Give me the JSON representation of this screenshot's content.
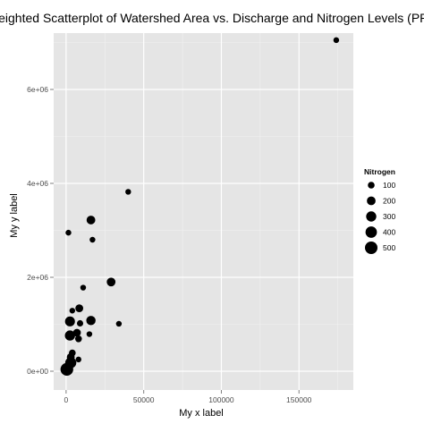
{
  "chart_data": {
    "type": "scatter",
    "title": "Weighted Scatterplot of Watershed Area vs. Discharge and Nitrogen Levels (PPM)",
    "xlabel": "My x label",
    "ylabel": "My y label",
    "xlim": [
      -8000,
      185000
    ],
    "ylim": [
      -400000,
      7200000
    ],
    "x_ticks": [
      0,
      50000,
      100000,
      150000
    ],
    "x_tick_labels": [
      "0",
      "50000",
      "100000",
      "150000"
    ],
    "y_ticks": [
      0,
      2000000,
      4000000,
      6000000
    ],
    "y_tick_labels": [
      "0e+00",
      "2e+06",
      "4e+06",
      "6e+06"
    ],
    "grid": true,
    "legend": {
      "title": "Nitrogen",
      "placement": "right",
      "entries": [
        {
          "label": "100",
          "value": 100
        },
        {
          "label": "200",
          "value": 200
        },
        {
          "label": "300",
          "value": 300
        },
        {
          "label": "400",
          "value": 400
        },
        {
          "label": "500",
          "value": 500
        }
      ]
    },
    "size_var": "Nitrogen",
    "points": [
      {
        "x": 174000,
        "y": 7050000,
        "size": 60
      },
      {
        "x": 40000,
        "y": 3820000,
        "size": 60
      },
      {
        "x": 16000,
        "y": 3220000,
        "size": 200
      },
      {
        "x": 17000,
        "y": 2800000,
        "size": 60
      },
      {
        "x": 1500,
        "y": 2950000,
        "size": 60
      },
      {
        "x": 29000,
        "y": 1900000,
        "size": 200
      },
      {
        "x": 11000,
        "y": 1780000,
        "size": 60
      },
      {
        "x": 8500,
        "y": 1340000,
        "size": 150
      },
      {
        "x": 4000,
        "y": 1290000,
        "size": 60
      },
      {
        "x": 16000,
        "y": 1080000,
        "size": 240
      },
      {
        "x": 2500,
        "y": 1060000,
        "size": 280
      },
      {
        "x": 34000,
        "y": 1010000,
        "size": 60
      },
      {
        "x": 9000,
        "y": 1020000,
        "size": 80
      },
      {
        "x": 7000,
        "y": 820000,
        "size": 150
      },
      {
        "x": 2500,
        "y": 760000,
        "size": 300
      },
      {
        "x": 15000,
        "y": 790000,
        "size": 60
      },
      {
        "x": 8000,
        "y": 690000,
        "size": 100
      },
      {
        "x": 4000,
        "y": 390000,
        "size": 100
      },
      {
        "x": 3000,
        "y": 300000,
        "size": 150
      },
      {
        "x": 8000,
        "y": 250000,
        "size": 60
      },
      {
        "x": 3000,
        "y": 180000,
        "size": 370
      },
      {
        "x": 500,
        "y": 40000,
        "size": 520
      }
    ]
  }
}
